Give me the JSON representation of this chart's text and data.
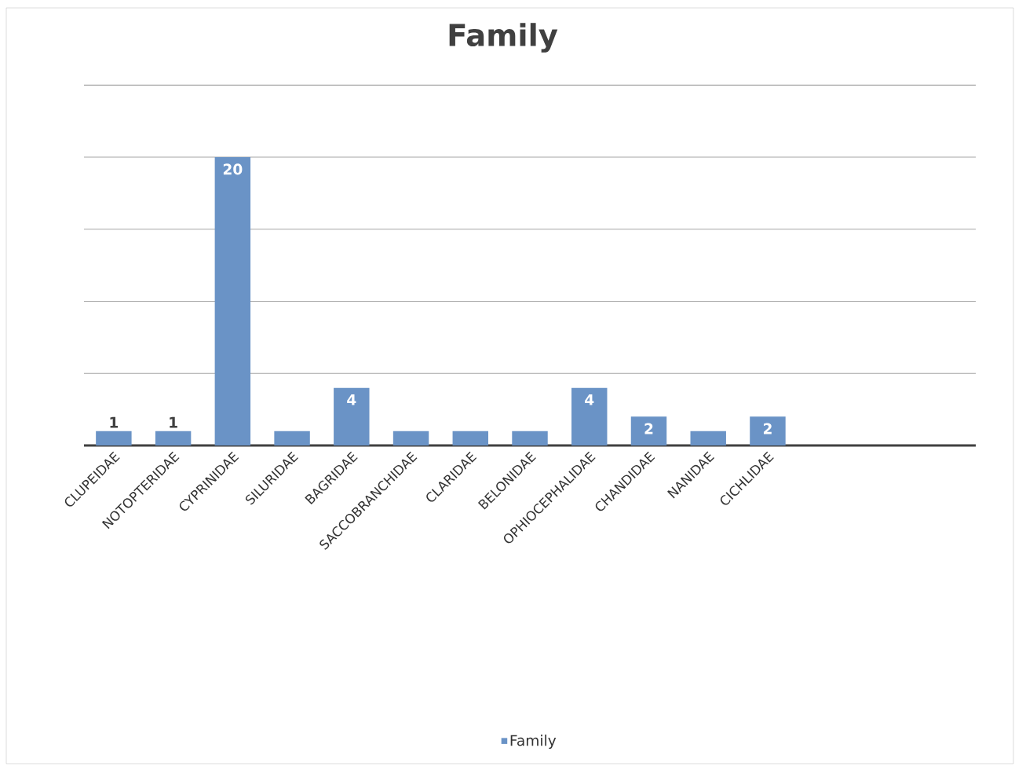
{
  "chart_data": {
    "type": "bar",
    "title": "Family",
    "categories": [
      "CLUPEIDAE",
      "NOTOPTERIDAE",
      "CYPRINIDAE",
      "SILURIDAE",
      "BAGRIDAE",
      "SACCOBRANCHIDAE",
      "CLARIDAE",
      "BELONIDAE",
      "OPHIOCEPHALIDAE",
      "CHANDIDAE",
      "NANIDAE",
      "CICHLIDAE",
      null,
      null,
      null
    ],
    "series": [
      {
        "name": "Family",
        "color": "#6a93c6",
        "values": [
          1,
          1,
          20,
          1,
          4,
          1,
          1,
          1,
          4,
          2,
          1,
          2,
          null,
          null,
          null
        ],
        "value_labels": [
          "1",
          "1",
          "20",
          null,
          "4",
          null,
          null,
          null,
          "4",
          "2",
          null,
          "2",
          null,
          null,
          null
        ]
      }
    ],
    "ylim": [
      0,
      25
    ],
    "yticks": [
      {
        "value": 0,
        "label": null
      },
      {
        "value": 5,
        "label": null
      },
      {
        "value": 10,
        "label": null
      },
      {
        "value": 15,
        "label": null
      },
      {
        "value": 20,
        "label": null
      },
      {
        "value": 25,
        "label": null
      }
    ],
    "tick_labels": "x",
    "grid": "y",
    "legend": "bottom"
  }
}
